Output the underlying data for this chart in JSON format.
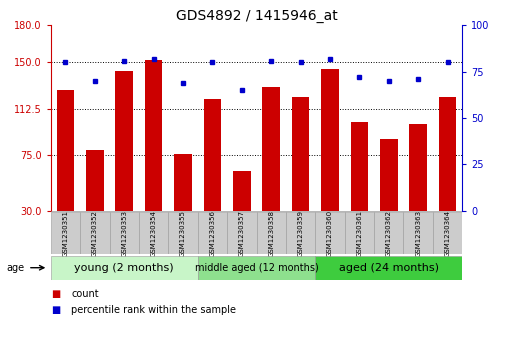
{
  "title": "GDS4892 / 1415946_at",
  "samples": [
    "GSM1230351",
    "GSM1230352",
    "GSM1230353",
    "GSM1230354",
    "GSM1230355",
    "GSM1230356",
    "GSM1230357",
    "GSM1230358",
    "GSM1230359",
    "GSM1230360",
    "GSM1230361",
    "GSM1230362",
    "GSM1230363",
    "GSM1230364"
  ],
  "counts": [
    128,
    79,
    143,
    152,
    76,
    120,
    62,
    130,
    122,
    145,
    102,
    88,
    100,
    122
  ],
  "percentiles": [
    80,
    70,
    81,
    82,
    69,
    80,
    65,
    81,
    80,
    82,
    72,
    70,
    71,
    80
  ],
  "ylim_left": [
    30,
    180
  ],
  "ylim_right": [
    0,
    100
  ],
  "yticks_left": [
    30,
    75,
    112.5,
    150,
    180
  ],
  "yticks_right": [
    0,
    25,
    50,
    75,
    100
  ],
  "groups": [
    {
      "label": "young (2 months)",
      "start": 0,
      "end": 5
    },
    {
      "label": "middle aged (12 months)",
      "start": 5,
      "end": 9
    },
    {
      "label": "aged (24 months)",
      "start": 9,
      "end": 14
    }
  ],
  "group_colors": [
    "#C8F5C8",
    "#8EE08E",
    "#3ECC3E"
  ],
  "bar_color": "#CC0000",
  "dot_color": "#0000CC",
  "bar_width": 0.6,
  "background_color": "#FFFFFF",
  "left_tick_color": "#CC0000",
  "right_tick_color": "#0000CC",
  "title_fontsize": 10,
  "tick_fontsize": 7,
  "sample_fontsize": 5,
  "group_fontsize_young": 8,
  "group_fontsize_middle": 7,
  "group_fontsize_aged": 8,
  "legend_fontsize": 7
}
